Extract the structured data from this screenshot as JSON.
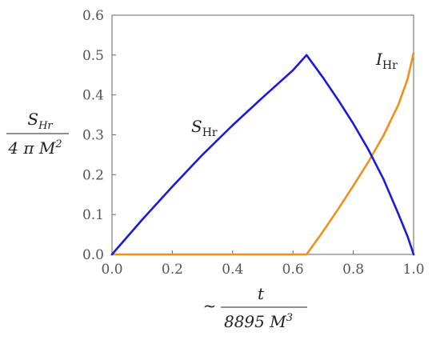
{
  "chart_data": {
    "type": "line",
    "xlim": [
      0,
      1
    ],
    "ylim": [
      0,
      0.6
    ],
    "x_ticks": [
      "0.0",
      "0.2",
      "0.4",
      "0.6",
      "0.8",
      "1.0"
    ],
    "y_ticks": [
      "0.0",
      "0.1",
      "0.2",
      "0.3",
      "0.4",
      "0.5",
      "0.6"
    ],
    "ylabel": {
      "numerator": "S",
      "numerator_sub": "Hr",
      "denominator": "4 π M",
      "denominator_sup": "2"
    },
    "xlabel": {
      "prefix": "~",
      "numerator": "t",
      "denominator": "8895 M",
      "denominator_sup": "3"
    },
    "series": [
      {
        "name": "S",
        "name_sub": "Hr",
        "color": "#1a1adb",
        "x": [
          0.0,
          0.1,
          0.2,
          0.3,
          0.4,
          0.5,
          0.6,
          0.645,
          0.7,
          0.75,
          0.8,
          0.85,
          0.9,
          0.95,
          0.98,
          1.0
        ],
        "y": [
          0.0,
          0.087,
          0.17,
          0.25,
          0.324,
          0.394,
          0.462,
          0.5,
          0.443,
          0.387,
          0.328,
          0.263,
          0.189,
          0.101,
          0.045,
          0.0
        ]
      },
      {
        "name": "I",
        "name_sub": "Hr",
        "color": "#f28e1c",
        "x": [
          0.0,
          0.645,
          0.7,
          0.75,
          0.8,
          0.85,
          0.9,
          0.95,
          0.98,
          1.0
        ],
        "y": [
          0.0,
          0.0,
          0.058,
          0.114,
          0.172,
          0.232,
          0.298,
          0.376,
          0.44,
          0.505
        ]
      }
    ]
  }
}
